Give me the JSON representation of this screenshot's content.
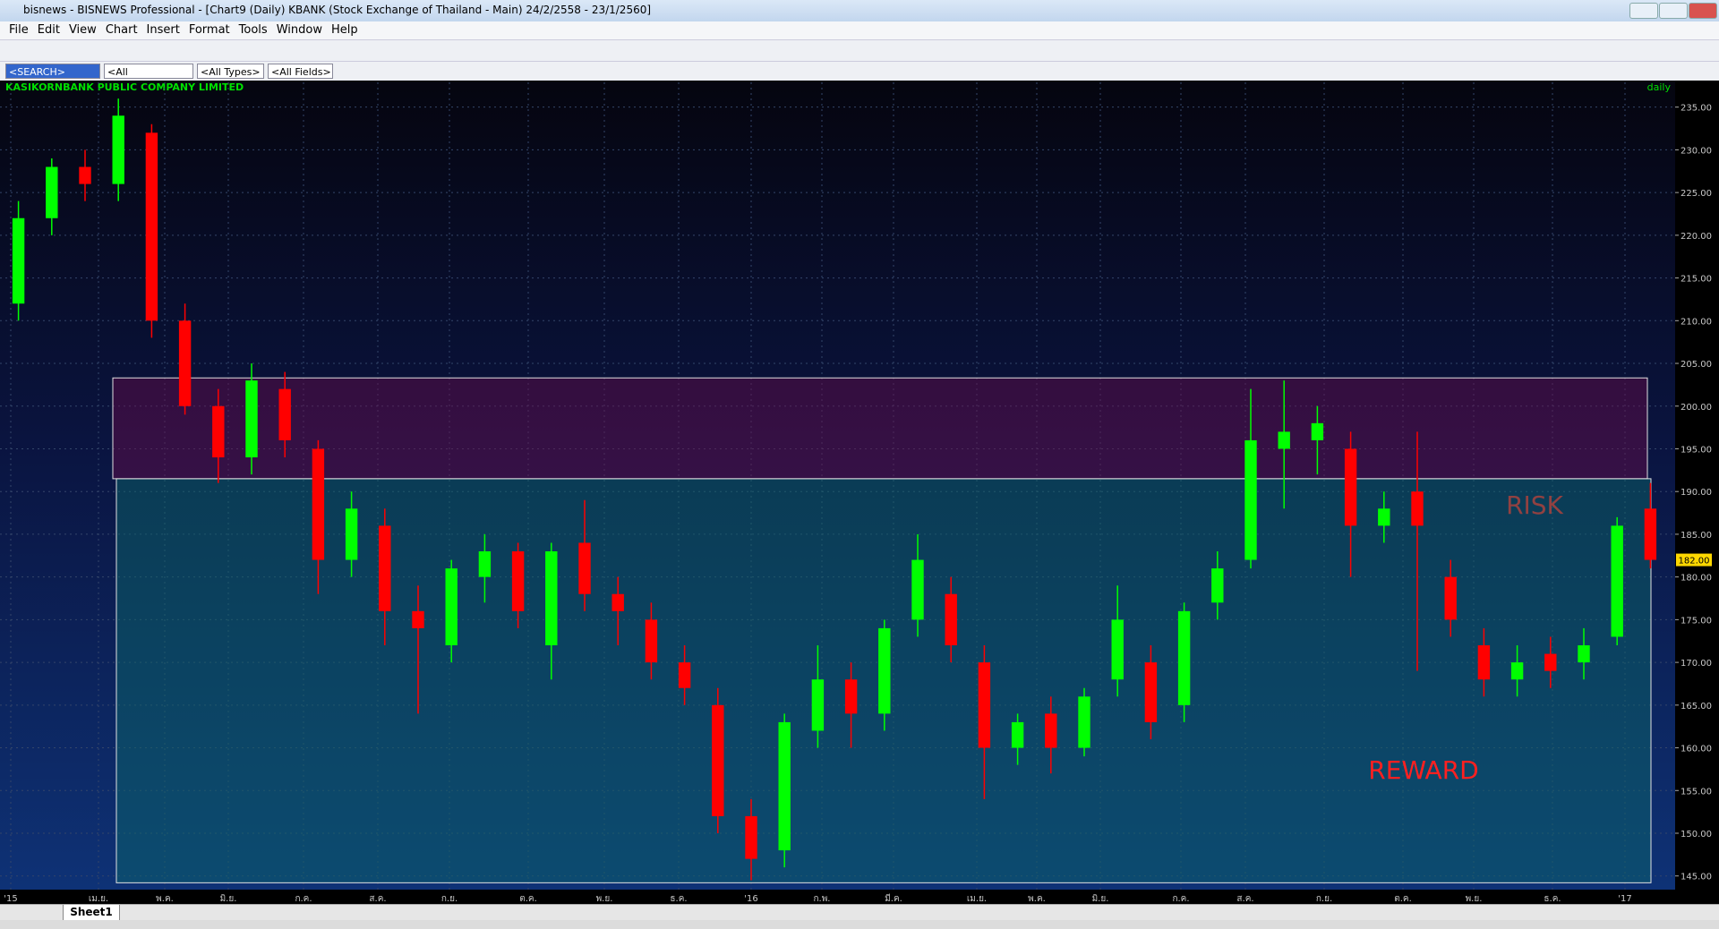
{
  "window_title": "bisnews - BISNEWS Professional - [Chart9 (Daily)  KBANK (Stock Exchange of Thailand - Main) 24/2/2558 - 23/1/2560]",
  "menu": [
    "File",
    "Edit",
    "View",
    "Chart",
    "Insert",
    "Format",
    "Tools",
    "Window",
    "Help"
  ],
  "toolbar": {
    "search": "<SEARCH>",
    "exchanges": "<All Exchanges>",
    "types": "<All Types>",
    "fields": "<All Fields>"
  },
  "sheet_tab": "Sheet1",
  "chart_data": {
    "type": "candlestick",
    "title": "KASIKORNBANK PUBLIC COMPANY LIMITED",
    "period": "daily",
    "x_labels": [
      "'15",
      "เม.ย.",
      "พ.ค.",
      "มิ.ย.",
      "ก.ค.",
      "ส.ค.",
      "ก.ย.",
      "ต.ค.",
      "พ.ย.",
      "ธ.ค.",
      "'16",
      "ก.พ.",
      "มี.ค.",
      "เม.ย.",
      "พ.ค.",
      "มิ.ย.",
      "ก.ค.",
      "ส.ค.",
      "ก.ย.",
      "ต.ค.",
      "พ.ย.",
      "ธ.ค.",
      "'17"
    ],
    "open": [
      212,
      222,
      228,
      226,
      232,
      210,
      200,
      194,
      202,
      195,
      182,
      186,
      176,
      172,
      180,
      183,
      172,
      184,
      178,
      175,
      170,
      165,
      152,
      148,
      162,
      168,
      164,
      175,
      178,
      170,
      160,
      164,
      160,
      168,
      170,
      165,
      177,
      182,
      195,
      196,
      195,
      186,
      190,
      180,
      172,
      168,
      171,
      170,
      173,
      188
    ],
    "high": [
      224,
      229,
      230,
      236,
      233,
      212,
      202,
      205,
      204,
      196,
      190,
      188,
      179,
      182,
      185,
      184,
      184,
      189,
      180,
      177,
      172,
      167,
      154,
      164,
      172,
      170,
      175,
      185,
      180,
      172,
      164,
      166,
      167,
      179,
      172,
      177,
      183,
      202,
      203,
      200,
      197,
      190,
      197,
      182,
      174,
      172,
      173,
      174,
      187,
      191
    ],
    "low": [
      210,
      220,
      224,
      224,
      208,
      199,
      191,
      192,
      194,
      178,
      180,
      172,
      164,
      170,
      177,
      174,
      168,
      176,
      172,
      168,
      165,
      150,
      144.5,
      146,
      160,
      160,
      162,
      173,
      170,
      154,
      158,
      157,
      159,
      166,
      161,
      163,
      175,
      181,
      188,
      192,
      180,
      184,
      169,
      173,
      166,
      166,
      167,
      168,
      172,
      181
    ],
    "close": [
      222,
      228,
      226,
      234,
      210,
      200,
      194,
      203,
      196,
      182,
      188,
      176,
      174,
      181,
      183,
      176,
      183,
      178,
      176,
      170,
      167,
      152,
      147,
      163,
      168,
      164,
      174,
      182,
      172,
      160,
      163,
      160,
      166,
      175,
      163,
      176,
      181,
      196,
      197,
      198,
      186,
      188,
      186,
      175,
      168,
      170,
      169,
      172,
      186,
      182
    ],
    "colors": {
      "up": "#00ff00",
      "down": "#ff0000"
    },
    "ylim": [
      143.4,
      237.9
    ],
    "yticks": [
      {
        "value": 145,
        "label": "145.00"
      },
      {
        "value": 150,
        "label": "150.00"
      },
      {
        "value": 155,
        "label": "155.00"
      },
      {
        "value": 160,
        "label": "160.00"
      },
      {
        "value": 165,
        "label": "165.00"
      },
      {
        "value": 170,
        "label": "170.00"
      },
      {
        "value": 175,
        "label": "175.00"
      },
      {
        "value": 180,
        "label": "180.00"
      },
      {
        "value": 185,
        "label": "185.00"
      },
      {
        "value": 190,
        "label": "190.00"
      },
      {
        "value": 195,
        "label": "195.00"
      },
      {
        "value": 200,
        "label": "200.00"
      },
      {
        "value": 205,
        "label": "205.00"
      },
      {
        "value": 210,
        "label": "210.00"
      },
      {
        "value": 215,
        "label": "215.00"
      },
      {
        "value": 220,
        "label": "220.00"
      },
      {
        "value": 225,
        "label": "225.00"
      },
      {
        "value": 230,
        "label": "230.00"
      },
      {
        "value": 235,
        "label": "235.00"
      }
    ],
    "last_price": {
      "value": 182,
      "label": "182.00"
    },
    "zones": [
      {
        "label": "RISK",
        "from": 191.5,
        "to": 203.3,
        "color": "#6a0a4a"
      },
      {
        "label": "REWARD",
        "from": 144.2,
        "to": 191.5,
        "color": "#0a6a6a"
      }
    ],
    "grid": true
  }
}
